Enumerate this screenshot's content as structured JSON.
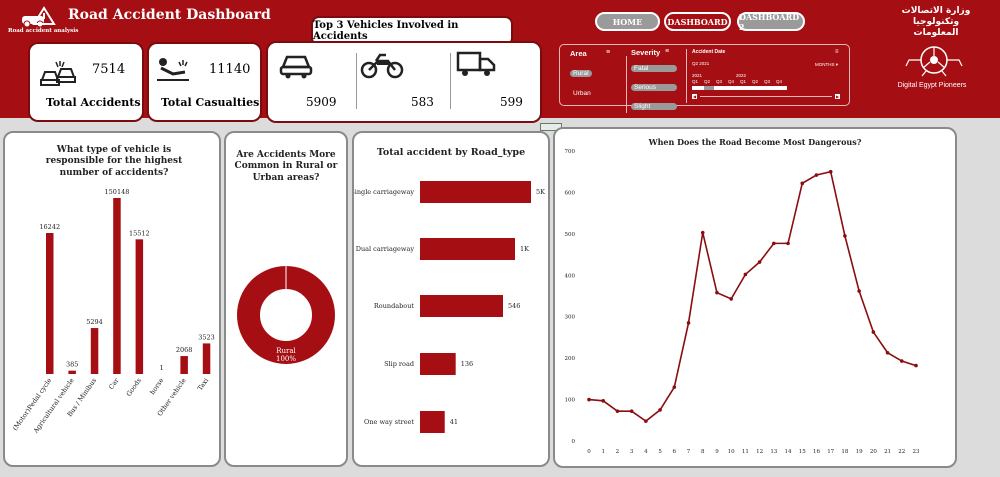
{
  "header": {
    "title": "Road Accident Dashboard",
    "logo_caption": "Road accident analysis",
    "brand_caption": "Digital Egypt Pioneers",
    "brand_arabic": "وزارة الاتصالات وتكنولوجيا المعلومات"
  },
  "nav": {
    "home": "HOME",
    "dashboard": "DASHBOARD",
    "dashboard2": "DASHBOARD 2"
  },
  "kpis": {
    "total_accidents_value": "7514",
    "total_accidents_label": "Total Accidents",
    "total_casualties_value": "11140",
    "total_casualties_label": "Total Casualties"
  },
  "top3": {
    "title": "Top 3 Vehicles Involved in Accidents",
    "car": "5909",
    "motorcycle": "583",
    "goods": "599"
  },
  "filters": {
    "area_label": "Area",
    "area_options": [
      "Rural",
      "Urban"
    ],
    "severity_label": "Severity",
    "severity_options": [
      "Fatal",
      "Serious",
      "Slight"
    ],
    "date_label": "Accident Date",
    "date_range": "Q2 2021",
    "all_periods": "All Periods",
    "months": "MONTHS",
    "years": [
      "2021",
      "2022"
    ],
    "quarters": [
      "Q1",
      "Q2",
      "Q3",
      "Q4",
      "Q1",
      "Q2",
      "Q3",
      "Q4"
    ]
  },
  "charts": {
    "vehicle_title": "What type of vehicle is responsible for the highest number of accidents?",
    "area_title": "Are Accidents More Common in Rural or Urban areas?",
    "road_title": "Total accident by Road_type",
    "hour_title": "When Does the Road Become Most Dangerous?"
  },
  "chart_data": [
    {
      "type": "bar",
      "title": "What type of vehicle is responsible for the highest number of accidents?",
      "categories": [
        "(Motor)Pedal cycle",
        "Agricultural vehicle",
        "Bus / Minibus",
        "Car",
        "Goods",
        "horse",
        "Other vehicle",
        "Taxi"
      ],
      "values": [
        16242,
        385,
        5294,
        150148,
        15512,
        1,
        2068,
        3523
      ]
    },
    {
      "type": "pie",
      "title": "Are Accidents More Common in Rural or Urban areas?",
      "labels": [
        "Rural"
      ],
      "values": [
        100
      ],
      "data_labels": [
        "Rural 100%"
      ]
    },
    {
      "type": "bar",
      "orientation": "horizontal",
      "title": "Total accident by Road_type",
      "categories": [
        "Single carriageway",
        "Dual carriageway",
        "Roundabout",
        "Slip road",
        "One way street"
      ],
      "values": [
        5000,
        1000,
        546,
        136,
        41
      ],
      "data_labels": [
        "5K",
        "1K",
        "546",
        "136",
        "41"
      ]
    },
    {
      "type": "line",
      "title": "When Does the Road Become Most Dangerous?",
      "x": [
        0,
        1,
        2,
        3,
        4,
        5,
        6,
        7,
        8,
        9,
        10,
        11,
        12,
        13,
        14,
        15,
        16,
        17,
        18,
        19,
        20,
        21,
        22,
        23
      ],
      "y": [
        100,
        97,
        72,
        72,
        48,
        75,
        130,
        285,
        503,
        358,
        343,
        402,
        432,
        477,
        477,
        622,
        642,
        650,
        495,
        362,
        263,
        213,
        193,
        182
      ],
      "ylim": [
        0,
        700
      ],
      "yticks": [
        0,
        100,
        200,
        300,
        400,
        500,
        600,
        700
      ]
    }
  ],
  "colors": {
    "accent": "#a50f14",
    "line": "#8b0d10"
  }
}
